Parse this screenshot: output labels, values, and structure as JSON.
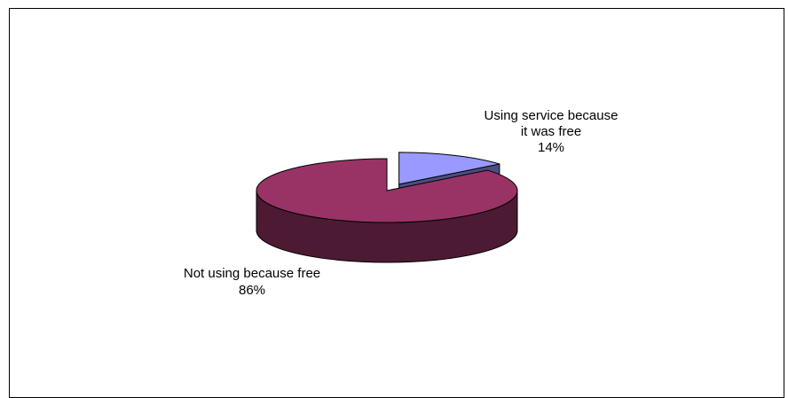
{
  "chart_data": {
    "type": "pie",
    "three_d": true,
    "title": "",
    "legend": "none",
    "slices": [
      {
        "name": "Using service because it was free",
        "label_lines": [
          "Using service because",
          "it was free"
        ],
        "value": 14,
        "percent_label": "14%",
        "color": "#9999ff",
        "side_color": "#4d4d80",
        "exploded": true
      },
      {
        "name": "Not using because free",
        "label_lines": [
          "Not using because free"
        ],
        "value": 86,
        "percent_label": "86%",
        "color": "#993366",
        "side_color": "#4d1a33",
        "exploded": false
      }
    ]
  }
}
